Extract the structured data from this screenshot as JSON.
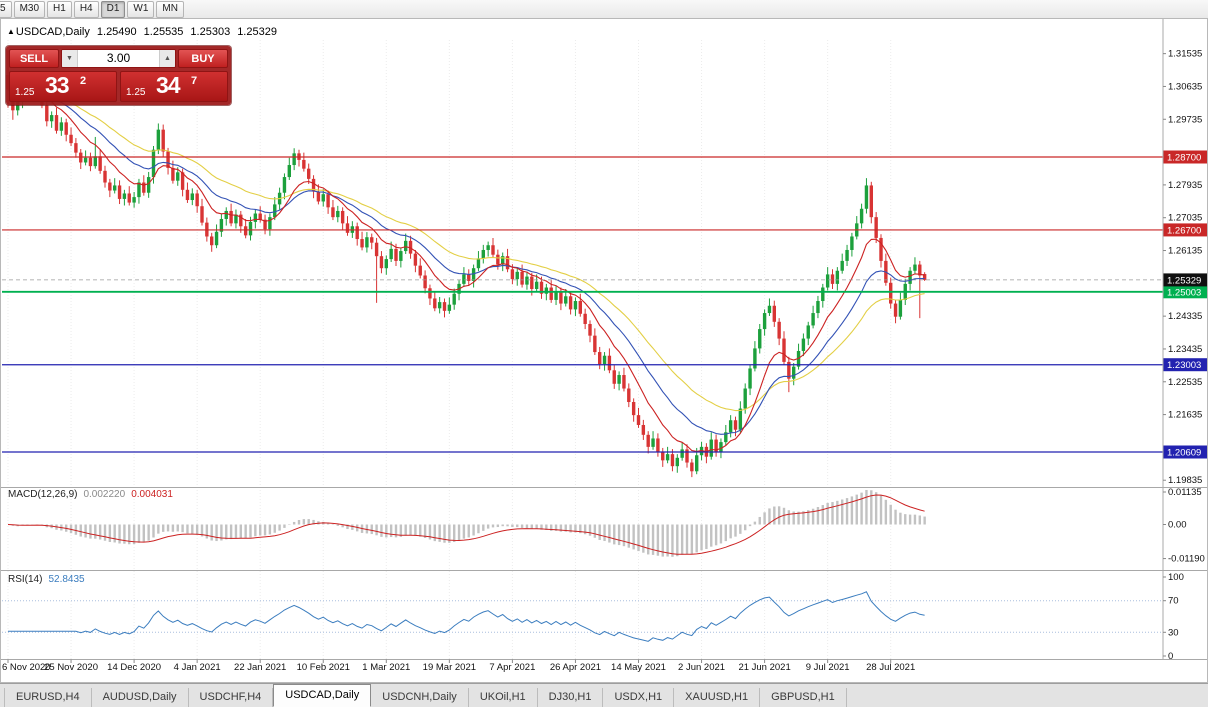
{
  "toolbar": {
    "timeframes": [
      {
        "label": "5"
      },
      {
        "label": "M30"
      },
      {
        "label": "H1"
      },
      {
        "label": "H4"
      },
      {
        "label": "D1"
      },
      {
        "label": "W1"
      },
      {
        "label": "MN"
      }
    ],
    "active": "D1"
  },
  "chart": {
    "symbol_header": {
      "marker": "▲",
      "title": "USDCAD,Daily",
      "open": "1.25490",
      "high": "1.25535",
      "low": "1.25303",
      "close": "1.25329"
    },
    "trade_panel": {
      "sell_label": "SELL",
      "buy_label": "BUY",
      "volume": "3.00",
      "down_icon": "▼",
      "up_icon": "▲",
      "sell_price": {
        "prefix": "1.25",
        "big": "33",
        "sup": "2"
      },
      "buy_price": {
        "prefix": "1.25",
        "big": "34",
        "sup": "7"
      }
    }
  },
  "chart_data": {
    "type": "candlestick",
    "symbol": "USDCAD",
    "timeframe": "Daily",
    "x_axis_dates": [
      {
        "i": 0,
        "label": "6 Nov 2020"
      },
      {
        "i": 13,
        "label": "25 Nov 2020"
      },
      {
        "i": 26,
        "label": "14 Dec 2020"
      },
      {
        "i": 39,
        "label": "4 Jan 2021"
      },
      {
        "i": 52,
        "label": "22 Jan 2021"
      },
      {
        "i": 65,
        "label": "10 Feb 2021"
      },
      {
        "i": 78,
        "label": "1 Mar 2021"
      },
      {
        "i": 91,
        "label": "19 Mar 2021"
      },
      {
        "i": 104,
        "label": "7 Apr 2021"
      },
      {
        "i": 117,
        "label": "26 Apr 2021"
      },
      {
        "i": 130,
        "label": "14 May 2021"
      },
      {
        "i": 143,
        "label": "2 Jun 2021"
      },
      {
        "i": 156,
        "label": "21 Jun 2021"
      },
      {
        "i": 169,
        "label": "9 Jul 2021"
      },
      {
        "i": 182,
        "label": "28 Jul 2021"
      }
    ],
    "y_ticks": [
      1.31535,
      1.30635,
      1.29735,
      1.27935,
      1.27035,
      1.26135,
      1.24335,
      1.23435,
      1.22535,
      1.21635,
      1.19835
    ],
    "levels": [
      {
        "price": 1.287,
        "color_key": "red"
      },
      {
        "price": 1.267,
        "color_key": "red"
      },
      {
        "price": 1.25003,
        "color_key": "green"
      },
      {
        "price": 1.23003,
        "color_key": "blue"
      },
      {
        "price": 1.20609,
        "color_key": "blue"
      }
    ],
    "bid": 1.25329,
    "moving_averages": [
      {
        "period": 34,
        "color_key": "ma_slow"
      },
      {
        "period": 20,
        "color_key": "ma_mid"
      },
      {
        "period": 10,
        "color_key": "ma_fast"
      }
    ],
    "macd": {
      "label": "MACD(12,26,9)",
      "fast": 12,
      "slow": 26,
      "signal": 9,
      "value_main": "0.002220",
      "value_signal": "0.004031",
      "y_ticks": [
        0.01135,
        0,
        -0.0119
      ]
    },
    "rsi": {
      "label": "RSI(14)",
      "period": 14,
      "value": "52.8435",
      "levels": [
        70,
        30
      ],
      "y_ticks": [
        100,
        70,
        30,
        0
      ]
    },
    "candles": [
      [
        1.3095,
        1.3162,
        1.3005,
        1.3055
      ],
      [
        1.3055,
        1.3075,
        1.2972,
        1.2998
      ],
      [
        1.2998,
        1.3036,
        1.2984,
        1.3022
      ],
      [
        1.3022,
        1.3078,
        1.3004,
        1.3068
      ],
      [
        1.3068,
        1.3088,
        1.3032,
        1.304
      ],
      [
        1.304,
        1.3089,
        1.3026,
        1.3075
      ],
      [
        1.3075,
        1.3085,
        1.3034,
        1.3052
      ],
      [
        1.3052,
        1.3072,
        1.3004,
        1.3012
      ],
      [
        1.3012,
        1.3026,
        1.2954,
        1.2968
      ],
      [
        1.2968,
        1.2995,
        1.295,
        1.2985
      ],
      [
        1.2985,
        1.3005,
        1.2934,
        1.2942
      ],
      [
        1.2942,
        1.2979,
        1.2928,
        1.2965
      ],
      [
        1.2965,
        1.2975,
        1.2913,
        1.2931
      ],
      [
        1.2931,
        1.2951,
        1.29,
        1.2908
      ],
      [
        1.2908,
        1.2922,
        1.2868,
        1.2882
      ],
      [
        1.2882,
        1.2892,
        1.2837,
        1.2855
      ],
      [
        1.2855,
        1.2888,
        1.2847,
        1.2868
      ],
      [
        1.2868,
        1.2882,
        1.2831,
        1.2845
      ],
      [
        1.2845,
        1.2925,
        1.2838,
        1.2872
      ],
      [
        1.2872,
        1.2892,
        1.2824,
        1.2832
      ],
      [
        1.2832,
        1.2846,
        1.2786,
        1.28
      ],
      [
        1.28,
        1.281,
        1.276,
        1.2778
      ],
      [
        1.2778,
        1.2812,
        1.277,
        1.2792
      ],
      [
        1.2792,
        1.2806,
        1.2741,
        1.2755
      ],
      [
        1.2755,
        1.278,
        1.2737,
        1.277
      ],
      [
        1.277,
        1.279,
        1.2737,
        1.2745
      ],
      [
        1.2745,
        1.2774,
        1.2731,
        1.276
      ],
      [
        1.276,
        1.281,
        1.2742,
        1.28
      ],
      [
        1.28,
        1.282,
        1.2764,
        1.2772
      ],
      [
        1.2772,
        1.2829,
        1.2758,
        1.2815
      ],
      [
        1.2815,
        1.29,
        1.2797,
        1.289
      ],
      [
        1.289,
        1.2962,
        1.2878,
        1.2945
      ],
      [
        1.2945,
        1.2959,
        1.2871,
        1.2885
      ],
      [
        1.2885,
        1.2895,
        1.2822,
        1.284
      ],
      [
        1.284,
        1.286,
        1.2797,
        1.2805
      ],
      [
        1.2805,
        1.2842,
        1.2791,
        1.2828
      ],
      [
        1.2828,
        1.2838,
        1.2762,
        1.278
      ],
      [
        1.278,
        1.28,
        1.2744,
        1.2752
      ],
      [
        1.2752,
        1.2784,
        1.2738,
        1.277
      ],
      [
        1.277,
        1.278,
        1.2717,
        1.2735
      ],
      [
        1.2735,
        1.2755,
        1.2682,
        1.269
      ],
      [
        1.269,
        1.2704,
        1.2638,
        1.2652
      ],
      [
        1.2652,
        1.2662,
        1.261,
        1.2628
      ],
      [
        1.2628,
        1.2685,
        1.262,
        1.2665
      ],
      [
        1.2665,
        1.2714,
        1.2651,
        1.27
      ],
      [
        1.27,
        1.2732,
        1.2682,
        1.2722
      ],
      [
        1.2722,
        1.2742,
        1.268,
        1.2688
      ],
      [
        1.2688,
        1.2726,
        1.2674,
        1.2712
      ],
      [
        1.2712,
        1.2722,
        1.2662,
        1.268
      ],
      [
        1.268,
        1.27,
        1.2647,
        1.2655
      ],
      [
        1.2655,
        1.2706,
        1.2641,
        1.2692
      ],
      [
        1.2692,
        1.2725,
        1.2674,
        1.2715
      ],
      [
        1.2715,
        1.2735,
        1.269,
        1.2698
      ],
      [
        1.2698,
        1.2712,
        1.2658,
        1.2672
      ],
      [
        1.2672,
        1.2715,
        1.2654,
        1.2705
      ],
      [
        1.2705,
        1.276,
        1.2697,
        1.274
      ],
      [
        1.274,
        1.2786,
        1.2726,
        1.2772
      ],
      [
        1.2772,
        1.2825,
        1.2754,
        1.2815
      ],
      [
        1.2815,
        1.2868,
        1.2807,
        1.2848
      ],
      [
        1.2848,
        1.2894,
        1.2834,
        1.288
      ],
      [
        1.288,
        1.289,
        1.2844,
        1.2862
      ],
      [
        1.2862,
        1.2882,
        1.283,
        1.2838
      ],
      [
        1.2838,
        1.2852,
        1.2796,
        1.281
      ],
      [
        1.281,
        1.282,
        1.2757,
        1.2775
      ],
      [
        1.2775,
        1.2795,
        1.274,
        1.2748
      ],
      [
        1.2748,
        1.2782,
        1.2734,
        1.2768
      ],
      [
        1.2768,
        1.2778,
        1.2714,
        1.2732
      ],
      [
        1.2732,
        1.2752,
        1.2697,
        1.2705
      ],
      [
        1.2705,
        1.2736,
        1.2691,
        1.2722
      ],
      [
        1.2722,
        1.2732,
        1.267,
        1.2688
      ],
      [
        1.2688,
        1.2708,
        1.2654,
        1.2662
      ],
      [
        1.2662,
        1.2694,
        1.2648,
        1.268
      ],
      [
        1.268,
        1.269,
        1.2627,
        1.2645
      ],
      [
        1.2645,
        1.2665,
        1.2614,
        1.2622
      ],
      [
        1.2622,
        1.2664,
        1.2608,
        1.265
      ],
      [
        1.265,
        1.266,
        1.2617,
        1.2635
      ],
      [
        1.2635,
        1.2648,
        1.247,
        1.2598
      ],
      [
        1.2598,
        1.2612,
        1.2551,
        1.2565
      ],
      [
        1.2565,
        1.26,
        1.2547,
        1.259
      ],
      [
        1.259,
        1.2638,
        1.2582,
        1.2618
      ],
      [
        1.2618,
        1.2632,
        1.2571,
        1.2585
      ],
      [
        1.2585,
        1.2622,
        1.2567,
        1.2612
      ],
      [
        1.2612,
        1.266,
        1.2604,
        1.264
      ],
      [
        1.264,
        1.2654,
        1.2591,
        1.2605
      ],
      [
        1.2605,
        1.2615,
        1.2554,
        1.2572
      ],
      [
        1.2572,
        1.2592,
        1.2537,
        1.2545
      ],
      [
        1.2545,
        1.2559,
        1.2496,
        1.251
      ],
      [
        1.251,
        1.252,
        1.2464,
        1.2482
      ],
      [
        1.2482,
        1.2502,
        1.2447,
        1.2455
      ],
      [
        1.2455,
        1.2486,
        1.2441,
        1.2472
      ],
      [
        1.2472,
        1.2482,
        1.243,
        1.2448
      ],
      [
        1.2448,
        1.2485,
        1.244,
        1.2465
      ],
      [
        1.2465,
        1.2509,
        1.2451,
        1.2495
      ],
      [
        1.2495,
        1.2532,
        1.2477,
        1.2522
      ],
      [
        1.2522,
        1.2568,
        1.2514,
        1.2548
      ],
      [
        1.2548,
        1.2562,
        1.2516,
        1.253
      ],
      [
        1.253,
        1.2575,
        1.2512,
        1.2565
      ],
      [
        1.2565,
        1.2612,
        1.2557,
        1.2592
      ],
      [
        1.2592,
        1.2629,
        1.2578,
        1.2615
      ],
      [
        1.2615,
        1.2638,
        1.2597,
        1.2628
      ],
      [
        1.2628,
        1.2648,
        1.2594,
        1.2602
      ],
      [
        1.2602,
        1.2616,
        1.2561,
        1.2575
      ],
      [
        1.2575,
        1.2608,
        1.2557,
        1.2598
      ],
      [
        1.2598,
        1.2618,
        1.2554,
        1.2562
      ],
      [
        1.2562,
        1.2576,
        1.2521,
        1.2535
      ],
      [
        1.2535,
        1.2565,
        1.2517,
        1.2555
      ],
      [
        1.2555,
        1.2575,
        1.2512,
        1.252
      ],
      [
        1.252,
        1.2556,
        1.2506,
        1.2542
      ],
      [
        1.2542,
        1.2552,
        1.249,
        1.2508
      ],
      [
        1.2508,
        1.2548,
        1.25,
        1.2528
      ],
      [
        1.2528,
        1.2542,
        1.2481,
        1.2495
      ],
      [
        1.2495,
        1.2522,
        1.2477,
        1.2512
      ],
      [
        1.2512,
        1.2532,
        1.247,
        1.2478
      ],
      [
        1.2478,
        1.2516,
        1.2464,
        1.2502
      ],
      [
        1.2502,
        1.2512,
        1.245,
        1.2468
      ],
      [
        1.2468,
        1.2508,
        1.246,
        1.2488
      ],
      [
        1.2488,
        1.2502,
        1.2438,
        1.2452
      ],
      [
        1.2452,
        1.2485,
        1.2434,
        1.2475
      ],
      [
        1.2475,
        1.2495,
        1.2432,
        1.244
      ],
      [
        1.244,
        1.2454,
        1.2398,
        1.2412
      ],
      [
        1.2412,
        1.2422,
        1.2362,
        1.238
      ],
      [
        1.238,
        1.24,
        1.2327,
        1.2335
      ],
      [
        1.2335,
        1.2349,
        1.2288,
        1.2302
      ],
      [
        1.2302,
        1.2335,
        1.2284,
        1.2325
      ],
      [
        1.2325,
        1.2345,
        1.2277,
        1.2285
      ],
      [
        1.2285,
        1.2299,
        1.2234,
        1.2248
      ],
      [
        1.2248,
        1.2282,
        1.223,
        1.2272
      ],
      [
        1.2272,
        1.2292,
        1.2227,
        1.2235
      ],
      [
        1.2235,
        1.2249,
        1.2184,
        1.2198
      ],
      [
        1.2198,
        1.2208,
        1.2144,
        1.2162
      ],
      [
        1.2162,
        1.2182,
        1.2127,
        1.2135
      ],
      [
        1.2135,
        1.2149,
        1.2094,
        1.2108
      ],
      [
        1.2108,
        1.2118,
        1.2057,
        1.2075
      ],
      [
        1.2075,
        1.2118,
        1.2067,
        1.2098
      ],
      [
        1.2098,
        1.2112,
        1.2048,
        1.2062
      ],
      [
        1.2062,
        1.2072,
        1.202,
        1.2038
      ],
      [
        1.2038,
        1.2075,
        1.203,
        1.2055
      ],
      [
        1.2055,
        1.2069,
        1.2008,
        1.2022
      ],
      [
        1.2022,
        1.2055,
        1.2004,
        1.2045
      ],
      [
        1.2045,
        1.2088,
        1.2037,
        1.2068
      ],
      [
        1.2068,
        1.2082,
        1.2018,
        1.2032
      ],
      [
        1.2032,
        1.2042,
        1.1992,
        1.2008
      ],
      [
        1.2008,
        1.2072,
        1.2,
        1.2052
      ],
      [
        1.2052,
        1.2089,
        1.2038,
        1.2075
      ],
      [
        1.2075,
        1.2085,
        1.203,
        1.2048
      ],
      [
        1.2048,
        1.2115,
        1.204,
        1.2095
      ],
      [
        1.2095,
        1.2109,
        1.2048,
        1.2062
      ],
      [
        1.2062,
        1.2098,
        1.2044,
        1.2088
      ],
      [
        1.2088,
        1.2135,
        1.208,
        1.2115
      ],
      [
        1.2115,
        1.2162,
        1.2101,
        1.2148
      ],
      [
        1.2148,
        1.2158,
        1.2104,
        1.2122
      ],
      [
        1.2122,
        1.22,
        1.2114,
        1.218
      ],
      [
        1.218,
        1.2249,
        1.2166,
        1.2235
      ],
      [
        1.2235,
        1.23,
        1.2217,
        1.229
      ],
      [
        1.229,
        1.2365,
        1.2282,
        1.2345
      ],
      [
        1.2345,
        1.2412,
        1.2331,
        1.2398
      ],
      [
        1.2398,
        1.2452,
        1.238,
        1.2442
      ],
      [
        1.2442,
        1.2482,
        1.2434,
        1.2462
      ],
      [
        1.2462,
        1.2476,
        1.2404,
        1.2418
      ],
      [
        1.2418,
        1.2428,
        1.2354,
        1.2372
      ],
      [
        1.2372,
        1.2392,
        1.23,
        1.2308
      ],
      [
        1.2308,
        1.2322,
        1.2225,
        1.2262
      ],
      [
        1.2262,
        1.2305,
        1.2244,
        1.2295
      ],
      [
        1.2295,
        1.2358,
        1.2287,
        1.2338
      ],
      [
        1.2338,
        1.2386,
        1.2324,
        1.2372
      ],
      [
        1.2372,
        1.2418,
        1.2354,
        1.2408
      ],
      [
        1.2408,
        1.2462,
        1.24,
        1.2442
      ],
      [
        1.2442,
        1.2489,
        1.2428,
        1.2475
      ],
      [
        1.2475,
        1.2522,
        1.2457,
        1.2512
      ],
      [
        1.2512,
        1.2568,
        1.2504,
        1.2548
      ],
      [
        1.2548,
        1.2562,
        1.2508,
        1.2522
      ],
      [
        1.2522,
        1.2568,
        1.2504,
        1.2558
      ],
      [
        1.2558,
        1.2605,
        1.255,
        1.2585
      ],
      [
        1.2585,
        1.2629,
        1.2571,
        1.2615
      ],
      [
        1.2615,
        1.2662,
        1.2597,
        1.2652
      ],
      [
        1.2652,
        1.2708,
        1.2644,
        1.2688
      ],
      [
        1.2688,
        1.2742,
        1.2674,
        1.2728
      ],
      [
        1.2728,
        1.2812,
        1.2715,
        1.2792
      ],
      [
        1.2792,
        1.2802,
        1.2688,
        1.2705
      ],
      [
        1.2705,
        1.2719,
        1.2634,
        1.2648
      ],
      [
        1.2648,
        1.2658,
        1.2567,
        1.2585
      ],
      [
        1.2585,
        1.2605,
        1.2517,
        1.2525
      ],
      [
        1.2525,
        1.2539,
        1.2454,
        1.2468
      ],
      [
        1.2468,
        1.2478,
        1.2414,
        1.2432
      ],
      [
        1.2432,
        1.2498,
        1.2424,
        1.2478
      ],
      [
        1.2478,
        1.2536,
        1.2464,
        1.2522
      ],
      [
        1.2522,
        1.2568,
        1.2504,
        1.2558
      ],
      [
        1.2558,
        1.2595,
        1.255,
        1.2575
      ],
      [
        1.2575,
        1.2585,
        1.2428,
        1.2545
      ],
      [
        1.2549,
        1.2554,
        1.253,
        1.2533
      ]
    ]
  },
  "colors": {
    "bull": "#1ca03c",
    "bear": "#d83434",
    "ma_fast": "#cc2222",
    "ma_mid": "#3352b5",
    "ma_slow": "#e3cf45",
    "levels": {
      "red": "#c92727",
      "green": "#00b050",
      "blue": "#2222b0"
    },
    "bid_badge": "#101010",
    "macd_hist": "#c2c2c2",
    "macd_signal": "#cc2222",
    "rsi_line": "#3b7dbf",
    "rsi_levels": "#a9bedd",
    "grid": "#ececec"
  },
  "tabs": {
    "items": [
      {
        "label": "EURUSD,H4"
      },
      {
        "label": "AUDUSD,Daily"
      },
      {
        "label": "USDCHF,H4"
      },
      {
        "label": "USDCAD,Daily"
      },
      {
        "label": "USDCNH,Daily"
      },
      {
        "label": "UKOil,H1"
      },
      {
        "label": "DJ30,H1"
      },
      {
        "label": "USDX,H1"
      },
      {
        "label": "XAUUSD,H1"
      },
      {
        "label": "GBPUSD,H1"
      }
    ],
    "active": "USDCAD,Daily"
  }
}
